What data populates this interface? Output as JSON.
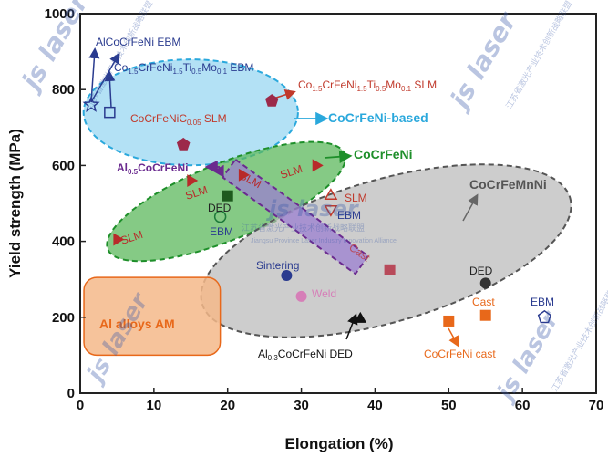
{
  "chart_data": {
    "type": "scatter",
    "xlabel": "Elongation (%)",
    "ylabel": "Yield strength (MPa)",
    "xlim": [
      0,
      70
    ],
    "ylim": [
      0,
      1000
    ],
    "xticks": [
      0,
      10,
      20,
      30,
      40,
      50,
      60,
      70
    ],
    "yticks": [
      0,
      200,
      400,
      600,
      800,
      1000
    ],
    "grid": false,
    "regions": [
      {
        "label": "CoCrFeNi-based",
        "color": "#2aa8dc"
      },
      {
        "label": "CoCrFeNi",
        "color": "#1e8f2a"
      },
      {
        "label": "CoCrFeMnNi",
        "color": "#666666"
      },
      {
        "label": "Al alloys AM",
        "color": "#e8681a"
      }
    ],
    "series": [
      {
        "name": "AlCoCrFeNi EBM",
        "color": "#2a3b8f",
        "marker": "star-open",
        "points": [
          {
            "x": 1.5,
            "y": 760
          }
        ]
      },
      {
        "name": "Co1.5CrFeNi1.5Ti0.5Mo0.1 EBM",
        "color": "#2a3b8f",
        "marker": "square-open",
        "points": [
          {
            "x": 4,
            "y": 740
          }
        ]
      },
      {
        "name": "Co1.5CrFeNi1.5Ti0.5Mo0.1 SLM",
        "color": "#9c2a4a",
        "marker": "pentagon",
        "points": [
          {
            "x": 26,
            "y": 770
          }
        ]
      },
      {
        "name": "CoCrFeNiC0.05 SLM",
        "color": "#9c2a4a",
        "marker": "pentagon",
        "points": [
          {
            "x": 14,
            "y": 655
          }
        ]
      },
      {
        "name": "Al0.5CoCrFeNi",
        "color": "#6a2a8f",
        "marker": "triangle-left",
        "points": [
          {
            "x": 19,
            "y": 585
          }
        ]
      },
      {
        "name": "CoCrFeNi SLM",
        "color": "#b82a2a",
        "marker": "triangle-right",
        "points": [
          {
            "x": 5,
            "y": 405
          },
          {
            "x": 15,
            "y": 560
          },
          {
            "x": 22,
            "y": 575
          },
          {
            "x": 32,
            "y": 600
          }
        ]
      },
      {
        "name": "CoCrFeNi DED",
        "color": "#1e5a1e",
        "marker": "square",
        "points": [
          {
            "x": 20,
            "y": 520
          }
        ]
      },
      {
        "name": "CoCrFeNi EBM",
        "color": "#1e7a3a",
        "marker": "circle-open",
        "points": [
          {
            "x": 19,
            "y": 465
          }
        ]
      },
      {
        "name": "CoCrFeMnNi SLM",
        "color": "#c0392b",
        "marker": "triangle-up-open",
        "points": [
          {
            "x": 34,
            "y": 520
          }
        ]
      },
      {
        "name": "CoCrFeMnNi EBM",
        "color": "#c0392b",
        "marker": "triangle-down-open",
        "points": [
          {
            "x": 34,
            "y": 485
          }
        ]
      },
      {
        "name": "CoCrFeMnNi Cast",
        "color": "#b84a5a",
        "marker": "square",
        "points": [
          {
            "x": 42,
            "y": 325
          }
        ]
      },
      {
        "name": "CoCrFeMnNi Sintering",
        "color": "#2a3b8f",
        "marker": "circle",
        "points": [
          {
            "x": 28,
            "y": 310
          }
        ]
      },
      {
        "name": "CoCrFeMnNi Weld",
        "color": "#d67fb8",
        "marker": "circle",
        "points": [
          {
            "x": 30,
            "y": 255
          }
        ]
      },
      {
        "name": "CoCrFeMnNi DED",
        "color": "#333333",
        "marker": "circle",
        "points": [
          {
            "x": 55,
            "y": 290
          }
        ]
      },
      {
        "name": "CoCrFeMnNi Cast (2)",
        "color": "#e8681a",
        "marker": "square",
        "points": [
          {
            "x": 55,
            "y": 205
          }
        ]
      },
      {
        "name": "CoCrFeMnNi EBM (2)",
        "color": "#2a3b8f",
        "marker": "pentagon-open",
        "points": [
          {
            "x": 63,
            "y": 200
          }
        ]
      },
      {
        "name": "Al0.3CoCrFeNi DED",
        "color": "#111111",
        "marker": "triangle-up",
        "points": [
          {
            "x": 38,
            "y": 195
          }
        ]
      },
      {
        "name": "CoCrFeNi cast",
        "color": "#e8681a",
        "marker": "square",
        "points": [
          {
            "x": 50,
            "y": 190
          }
        ]
      }
    ],
    "annotations": [
      {
        "text": "AlCoCrFeNi EBM",
        "color": "#2a3b8f"
      },
      {
        "text": "Co",
        "sub1": "1.5",
        "mid1": "CrFeNi",
        "sub2": "1.5",
        "mid2": "Ti",
        "sub3": "0.5",
        "mid3": "Mo",
        "sub4": "0.1",
        "tail": " EBM",
        "color": "#2a3b8f"
      },
      {
        "text": "Co",
        "sub1": "1.5",
        "mid1": "CrFeNi",
        "sub2": "1.5",
        "mid2": "Ti",
        "sub3": "0.5",
        "mid3": "Mo",
        "sub4": "0.1",
        "tail": " SLM",
        "color": "#c0392b"
      },
      {
        "text": "CoCrFeNiC",
        "sub1": "0.05",
        "tail": " SLM",
        "color": "#c0392b"
      },
      {
        "text": "Al",
        "sub1": "0.5",
        "tail": "CoCrFeNi",
        "color": "#6a2a8f"
      },
      {
        "text": "SLM"
      },
      {
        "text": "DED"
      },
      {
        "text": "EBM"
      },
      {
        "text": "Sintering"
      },
      {
        "text": "Weld"
      },
      {
        "text": "Cast"
      },
      {
        "text": "Al",
        "sub1": "0.3",
        "tail": "CoCrFeNi DED",
        "color": "#111111"
      },
      {
        "text": "CoCrFeNi cast",
        "color": "#e8681a"
      }
    ]
  },
  "watermark": {
    "logo_text": "js laser",
    "cn_text": "江苏省激光产业技术创新战略联盟",
    "en_text": "Jiangsu Province Laser Industry Innovation Alliance"
  }
}
